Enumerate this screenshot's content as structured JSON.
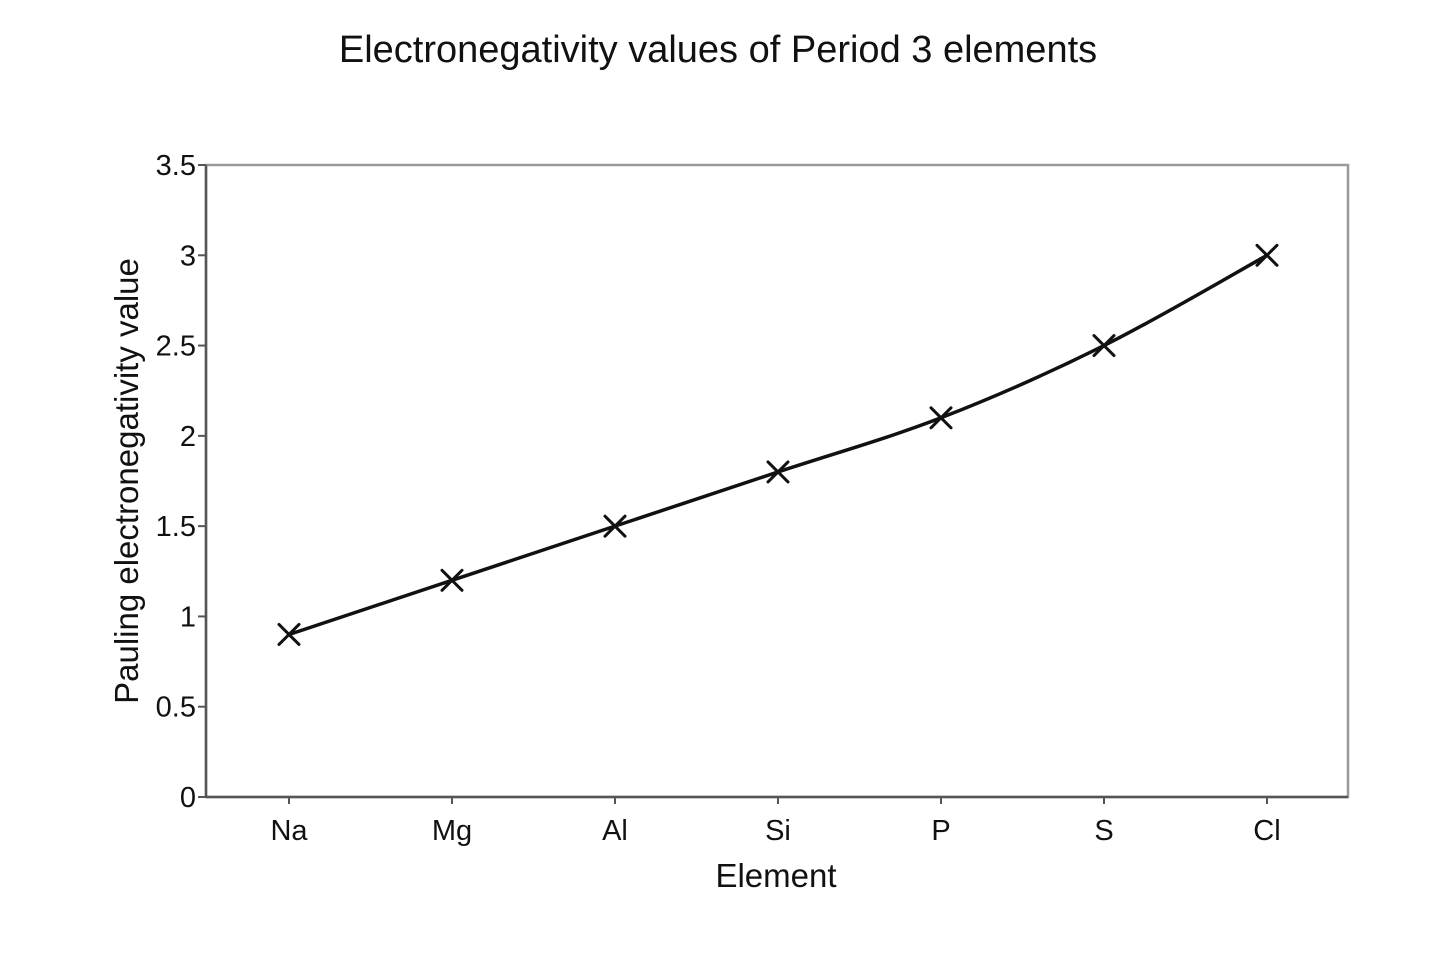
{
  "chart_data": {
    "type": "line",
    "title": "Electronegativity values of Period 3 elements",
    "xlabel": "Element",
    "ylabel": "Pauling electronegativity value",
    "categories": [
      "Na",
      "Mg",
      "Al",
      "Si",
      "P",
      "S",
      "Cl"
    ],
    "series": [
      {
        "values": [
          0.9,
          1.2,
          1.5,
          1.8,
          2.1,
          2.5,
          3.0
        ],
        "marker": "x",
        "color": "#111111"
      }
    ],
    "ylim": [
      0,
      3.5
    ],
    "yticks": [
      "0",
      "0.5",
      "1",
      "1.5",
      "2",
      "2.5",
      "3",
      "3.5"
    ],
    "ytick_values": [
      0,
      0.5,
      1,
      1.5,
      2,
      2.5,
      3,
      3.5
    ],
    "grid": false,
    "legend": "none"
  }
}
